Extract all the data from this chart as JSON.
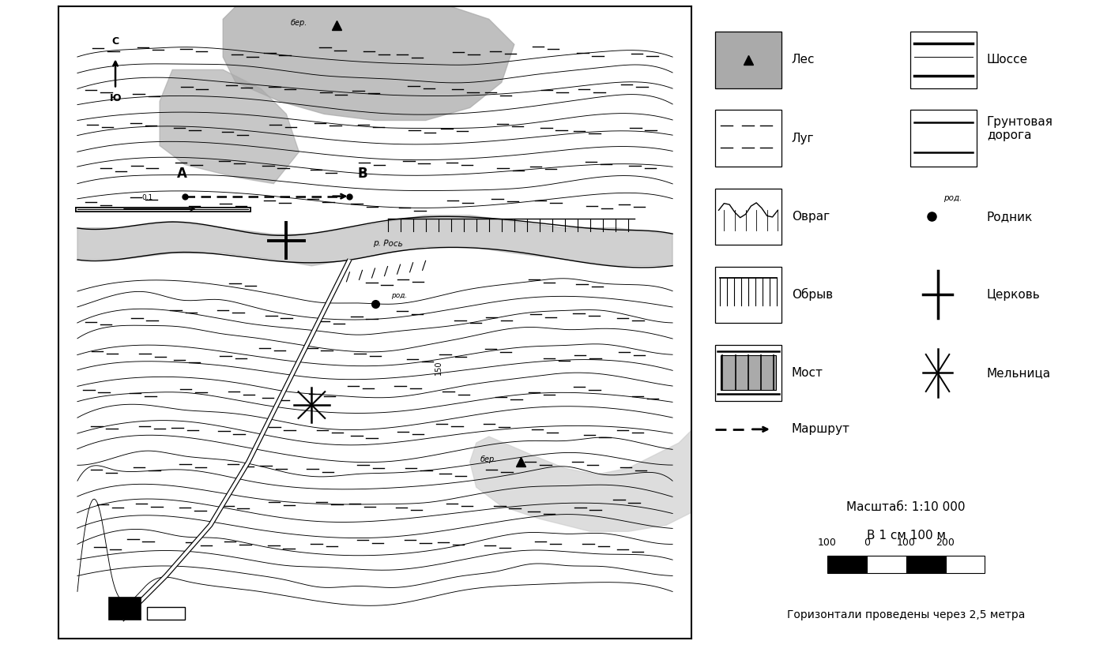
{
  "figure_width": 14.06,
  "figure_height": 8.26,
  "dpi": 100,
  "bg_color": "#ffffff",
  "map_bounds": [
    0.04,
    0.02,
    0.595,
    0.97
  ],
  "gray_color": "#aaaaaa",
  "lgray_color": "#cccccc",
  "title_scale": "Масштаб: 1:10 000",
  "title_scale2": "В 1 см 100 м",
  "title_horizont": "Горизонтали проведены через 2,5 метра"
}
